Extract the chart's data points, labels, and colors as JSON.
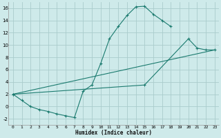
{
  "xlabel": "Humidex (Indice chaleur)",
  "bg_color": "#ceeaea",
  "grid_color": "#aacccc",
  "line_color": "#1a7a6e",
  "xlim": [
    -0.5,
    23.5
  ],
  "ylim": [
    -3,
    17
  ],
  "xticks": [
    0,
    1,
    2,
    3,
    4,
    5,
    6,
    7,
    8,
    9,
    10,
    11,
    12,
    13,
    14,
    15,
    16,
    17,
    18,
    19,
    20,
    21,
    22,
    23
  ],
  "yticks": [
    -2,
    0,
    2,
    4,
    6,
    8,
    10,
    12,
    14,
    16
  ],
  "line1_x": [
    0,
    1,
    2,
    3,
    4,
    5,
    6,
    7,
    8,
    9,
    10,
    11,
    12,
    13,
    14,
    15,
    16,
    17,
    18
  ],
  "line1_y": [
    2.0,
    1.0,
    0.0,
    -0.5,
    -0.8,
    -1.2,
    -1.5,
    -1.8,
    2.5,
    3.5,
    7.0,
    11.0,
    13.0,
    14.8,
    16.2,
    16.3,
    15.0,
    14.0,
    13.0
  ],
  "line2_x": [
    0,
    23
  ],
  "line2_y": [
    2.0,
    9.2
  ],
  "line3_x": [
    0,
    15,
    20,
    21,
    22,
    23
  ],
  "line3_y": [
    2.0,
    3.5,
    11.0,
    9.5,
    9.2,
    9.2
  ]
}
